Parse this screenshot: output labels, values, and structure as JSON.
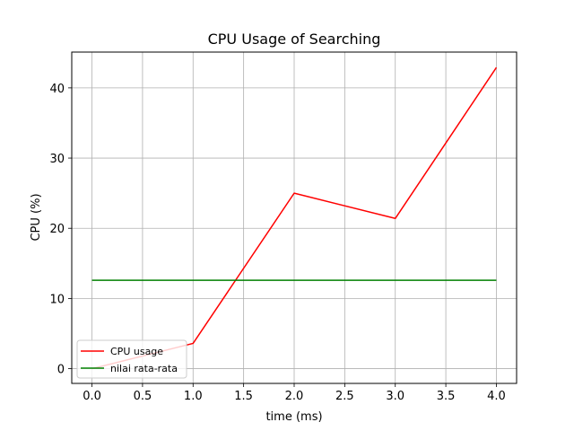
{
  "chart_data": {
    "type": "line",
    "title": "CPU Usage of Searching",
    "xlabel": "time (ms)",
    "ylabel": "CPU (%)",
    "x": [
      0,
      1,
      2,
      3,
      4
    ],
    "xlim": [
      -0.2,
      4.2
    ],
    "ylim": [
      -2.1,
      45.1
    ],
    "xticks": [
      "0.0",
      "0.5",
      "1.0",
      "1.5",
      "2.0",
      "2.5",
      "3.0",
      "3.5",
      "4.0"
    ],
    "yticks": [
      "0",
      "10",
      "20",
      "30",
      "40"
    ],
    "grid": true,
    "legend_position": "lower-left",
    "series": [
      {
        "name": "CPU usage",
        "color": "#ff0000",
        "values": [
          0,
          3.6,
          25.0,
          21.4,
          42.9
        ]
      },
      {
        "name": "nilai rata-rata",
        "color": "#008000",
        "values": [
          12.6,
          12.6,
          12.6,
          12.6,
          12.6
        ]
      }
    ]
  }
}
